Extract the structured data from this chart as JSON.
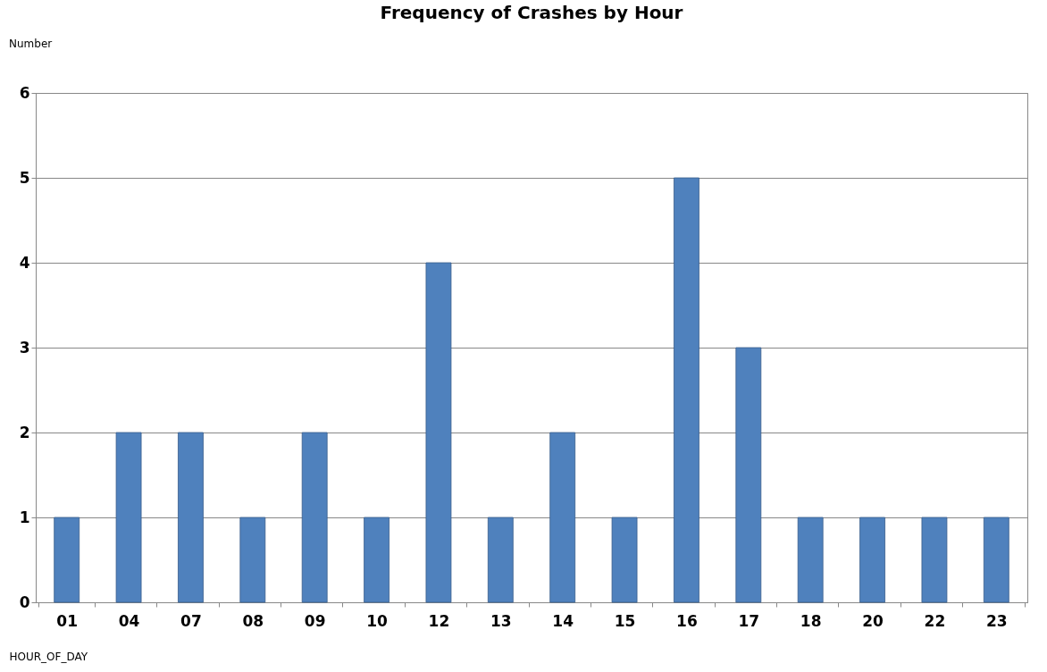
{
  "chart_data": {
    "type": "bar",
    "title": "Frequency of Crashes by Hour",
    "xlabel": "HOUR_OF_DAY",
    "annotations": [
      "Number"
    ],
    "categories": [
      "01",
      "04",
      "07",
      "08",
      "09",
      "10",
      "12",
      "13",
      "14",
      "15",
      "16",
      "17",
      "18",
      "20",
      "22",
      "23"
    ],
    "values": [
      1,
      2,
      2,
      1,
      2,
      1,
      4,
      1,
      2,
      1,
      5,
      3,
      1,
      1,
      1,
      1
    ],
    "color": "#4f81bd",
    "ylim": [
      0,
      6
    ],
    "yticks": [
      0,
      1,
      2,
      3,
      4,
      5,
      6
    ],
    "grid": "y"
  }
}
